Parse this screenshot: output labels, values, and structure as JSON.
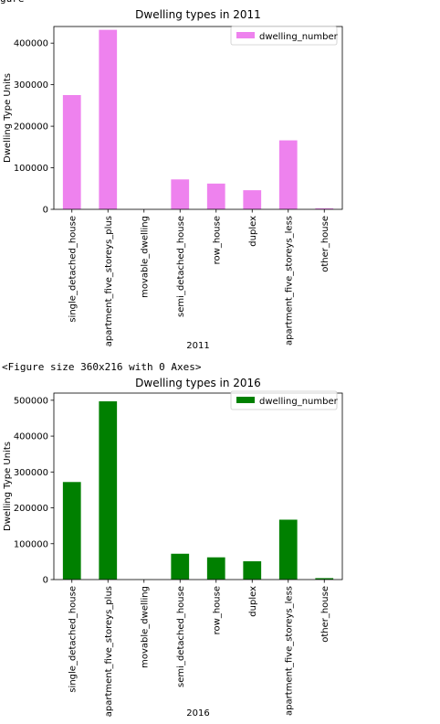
{
  "output_top_partial": "gure",
  "figure_size_text": "<Figure size 360x216 with 0 Axes>",
  "chart_data": [
    {
      "type": "bar",
      "title": "Dwelling types in 2011",
      "xlabel": "2011",
      "ylabel": "Dwelling Type Units",
      "categories": [
        "single_detached_house",
        "apartment_five_storeys_plus",
        "movable_dwelling",
        "semi_detached_house",
        "row_house",
        "duplex",
        "apartment_five_storeys_less",
        "other_house"
      ],
      "series": [
        {
          "name": "dwelling_number",
          "values": [
            275000,
            432000,
            100,
            72000,
            62000,
            46000,
            166000,
            2500
          ],
          "color": "#ee82ee"
        }
      ],
      "ylim": [
        0,
        440000
      ],
      "yticks": [
        0,
        100000,
        200000,
        300000,
        400000
      ],
      "legend": "top-right",
      "grid": false
    },
    {
      "type": "bar",
      "title": "Dwelling types in 2016",
      "xlabel": "2016",
      "ylabel": "Dwelling Type Units",
      "categories": [
        "single_detached_house",
        "apartment_five_storeys_plus",
        "movable_dwelling",
        "semi_detached_house",
        "row_house",
        "duplex",
        "apartment_five_storeys_less",
        "other_house"
      ],
      "series": [
        {
          "name": "dwelling_number",
          "values": [
            272000,
            497000,
            100,
            72000,
            62000,
            51000,
            167000,
            4000
          ],
          "color": "#008000"
        }
      ],
      "ylim": [
        0,
        520000
      ],
      "yticks": [
        0,
        100000,
        200000,
        300000,
        400000,
        500000
      ],
      "legend": "top-right",
      "grid": false
    }
  ]
}
